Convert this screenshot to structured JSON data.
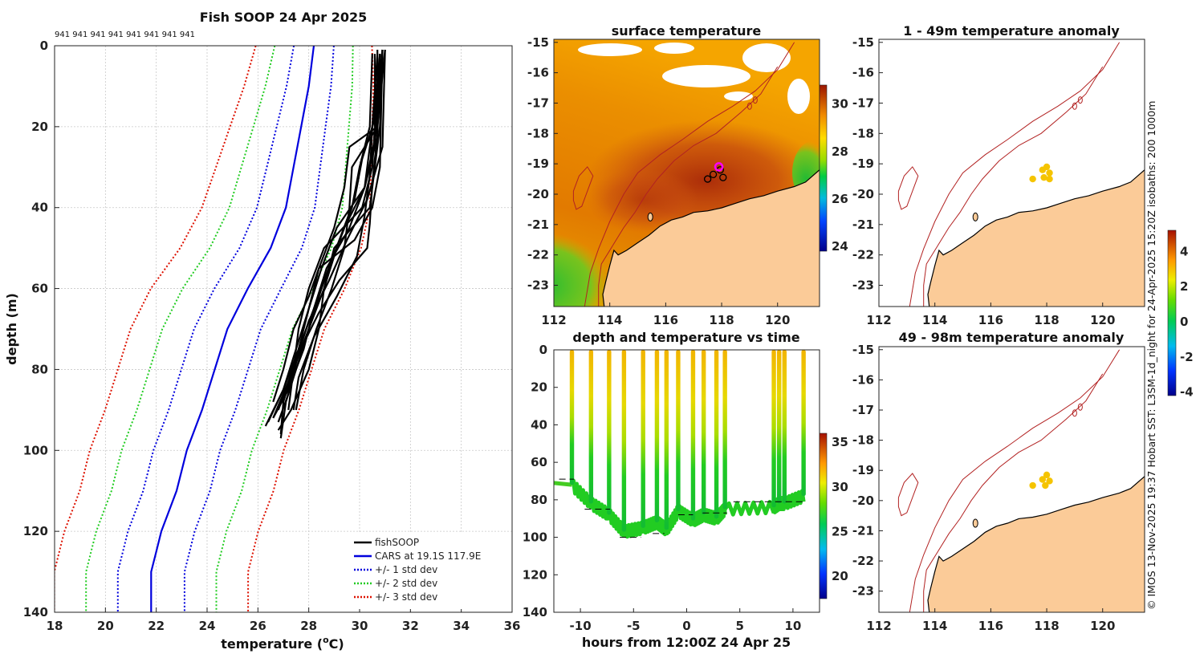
{
  "credit": "© IMOS 13-Nov-2025 19:37 Hobart SST: L3SM-1d_night for 24-Apr-2025 15:20Z isobaths: 200  1000m",
  "colors": {
    "fishsoop": "#000000",
    "cars": "#0000dd",
    "std1": "#0000dd",
    "std2": "#22cc22",
    "std3": "#dd1100",
    "land": "#fbcb98",
    "isobath": "#b22222"
  },
  "chart_data": [
    {
      "id": "profile",
      "type": "line",
      "title": "Fish SOOP 24 Apr 2025",
      "top_label": "941 941 941 941 941 941 941 941",
      "xlabel": "temperature (°C)",
      "xlabel_main": "temperature (",
      "xlabel_sup": "o",
      "xlabel_end": "C)",
      "ylabel": "depth (m)",
      "xlim": [
        18,
        36
      ],
      "ylim": [
        0,
        140
      ],
      "xticks": [
        18,
        20,
        22,
        24,
        26,
        28,
        30,
        32,
        34,
        36
      ],
      "yticks": [
        0,
        20,
        40,
        60,
        80,
        100,
        120,
        140
      ],
      "legend": [
        "fishSOOP",
        "CARS at 19.1S 117.9E",
        "+/- 1 std dev",
        "+/- 2 std dev",
        "+/- 3 std dev"
      ],
      "legend_position": "bottom-right",
      "cars": {
        "depth": [
          0,
          10,
          20,
          30,
          40,
          50,
          60,
          70,
          80,
          90,
          100,
          110,
          120,
          125,
          130,
          140
        ],
        "temp": [
          28.2,
          28.0,
          27.7,
          27.4,
          27.1,
          26.5,
          25.6,
          24.8,
          24.3,
          23.8,
          23.2,
          22.8,
          22.2,
          22.0,
          21.8,
          21.8
        ]
      },
      "std_offsets": [
        1.05,
        2.05,
        3.05
      ],
      "fishsoop_profiles": [
        {
          "depth": [
            1,
            20,
            30,
            40,
            50,
            60,
            70,
            80,
            90,
            95
          ],
          "temp": [
            30.9,
            30.8,
            30.6,
            30.4,
            29.0,
            28.6,
            28.4,
            28.0,
            27.3,
            26.8
          ]
        },
        {
          "depth": [
            2,
            15,
            25,
            35,
            45,
            55,
            65,
            75,
            85,
            92
          ],
          "temp": [
            30.8,
            30.6,
            30.4,
            30.2,
            29.4,
            28.8,
            28.2,
            27.8,
            27.2,
            26.6
          ]
        },
        {
          "depth": [
            1,
            20,
            25,
            35,
            45,
            55,
            65,
            75,
            85,
            93
          ],
          "temp": [
            30.7,
            30.7,
            29.6,
            29.4,
            29.0,
            28.4,
            28.0,
            27.6,
            27.0,
            26.4
          ]
        },
        {
          "depth": [
            2,
            20,
            30,
            40,
            50,
            60,
            70,
            80,
            90
          ],
          "temp": [
            30.6,
            30.6,
            30.5,
            30.1,
            28.6,
            28.0,
            27.6,
            27.4,
            27.2
          ]
        },
        {
          "depth": [
            1,
            20,
            35,
            45,
            55,
            65,
            75,
            85,
            94
          ],
          "temp": [
            30.9,
            30.7,
            30.2,
            29.1,
            28.5,
            28.0,
            27.5,
            27.0,
            26.3
          ]
        },
        {
          "depth": [
            2,
            25,
            35,
            45,
            55,
            65,
            75,
            85,
            90
          ],
          "temp": [
            30.8,
            30.6,
            30.2,
            29.6,
            28.7,
            28.2,
            27.6,
            27.1,
            26.8
          ]
        },
        {
          "depth": [
            1,
            30,
            40,
            48,
            55,
            62,
            70,
            80,
            88
          ],
          "temp": [
            30.9,
            30.8,
            30.5,
            29.8,
            28.4,
            28.0,
            27.4,
            27.0,
            26.6
          ]
        },
        {
          "depth": [
            2,
            20,
            30,
            40,
            50,
            60,
            70,
            80,
            92
          ],
          "temp": [
            30.5,
            30.4,
            30.0,
            29.7,
            29.1,
            28.6,
            28.0,
            27.4,
            26.6
          ]
        },
        {
          "depth": [
            1,
            25,
            38,
            48,
            58,
            68,
            78,
            88,
            96
          ],
          "temp": [
            31.0,
            30.9,
            30.3,
            29.5,
            28.8,
            28.0,
            27.5,
            27.0,
            26.9
          ]
        },
        {
          "depth": [
            2,
            20,
            32,
            42,
            52,
            62,
            72,
            82,
            90
          ],
          "temp": [
            30.7,
            30.5,
            30.4,
            30.2,
            29.9,
            29.1,
            28.2,
            27.6,
            27.4
          ]
        },
        {
          "depth": [
            1,
            18,
            28,
            38,
            48,
            58,
            68,
            78,
            88,
            97
          ],
          "temp": [
            30.9,
            30.6,
            30.1,
            29.8,
            29.2,
            28.6,
            28.1,
            27.6,
            27.1,
            26.9
          ]
        },
        {
          "depth": [
            2,
            22,
            34,
            44,
            50,
            58,
            66,
            76,
            86,
            93
          ],
          "temp": [
            30.8,
            30.7,
            30.5,
            30.4,
            30.3,
            29.2,
            28.4,
            27.6,
            27.2,
            26.8
          ]
        },
        {
          "depth": [
            1,
            20,
            30,
            40,
            50,
            60,
            70,
            80,
            90
          ],
          "temp": [
            31.0,
            30.7,
            29.7,
            29.6,
            29.4,
            28.9,
            28.3,
            27.8,
            27.5
          ]
        }
      ]
    },
    {
      "id": "sst",
      "type": "heatmap",
      "title": "surface temperature",
      "xlim": [
        112,
        121.5
      ],
      "ylim": [
        -23.7,
        -14.9
      ],
      "xticks": [
        112,
        114,
        116,
        118,
        120
      ],
      "yticks": [
        -15,
        -16,
        -17,
        -18,
        -19,
        -20,
        -21,
        -22,
        -23
      ],
      "colorbar": {
        "min": 23.8,
        "max": 30.8,
        "ticks": [
          24,
          26,
          28,
          30
        ]
      },
      "markers": [
        {
          "lon": 117.5,
          "lat": -19.5
        },
        {
          "lon": 117.7,
          "lat": -19.35
        },
        {
          "lon": 117.95,
          "lat": -19.2
        },
        {
          "lon": 118.05,
          "lat": -19.45
        },
        {
          "lon": 117.9,
          "lat": -19.1
        }
      ],
      "highlight": {
        "lon": 117.9,
        "lat": -19.1
      }
    },
    {
      "id": "depthtime",
      "type": "scatter",
      "title": "depth and temperature vs time",
      "xlabel": "hours from 12:00Z 24 Apr 25",
      "xlim": [
        -12.5,
        12.5
      ],
      "ylim": [
        0,
        140
      ],
      "xticks": [
        -10,
        -5,
        0,
        5,
        10
      ],
      "yticks": [
        0,
        20,
        40,
        60,
        80,
        100,
        120,
        140
      ],
      "colorbar": {
        "min": 17.5,
        "max": 36.0,
        "ticks": [
          20,
          25,
          30,
          35
        ]
      },
      "cast_times": [
        -10.8,
        -9.0,
        -7.3,
        -5.9,
        -4.1,
        -2.8,
        -1.9,
        -0.8,
        0.6,
        1.6,
        2.8,
        3.6,
        8.2,
        8.7,
        9.2,
        11.0
      ],
      "cast_max_depth": [
        72,
        82,
        88,
        97,
        95,
        92,
        96,
        86,
        91,
        88,
        90,
        85,
        84,
        82,
        82,
        78
      ],
      "bottom_segments": [
        {
          "t0": -12.0,
          "t1": -10.6,
          "d": 69
        },
        {
          "t0": -9.6,
          "t1": -7.2,
          "d": 85
        },
        {
          "t0": -6.3,
          "t1": -4.3,
          "d": 100
        },
        {
          "t0": -3.2,
          "t1": -2.1,
          "d": 98
        },
        {
          "t0": -0.8,
          "t1": 0.6,
          "d": 88
        },
        {
          "t0": 1.5,
          "t1": 3.8,
          "d": 87
        },
        {
          "t0": 4.4,
          "t1": 11.2,
          "d": 81
        }
      ]
    },
    {
      "id": "anom1",
      "type": "scatter",
      "title": "1 - 49m temperature anomaly",
      "xlim": [
        112,
        121.5
      ],
      "ylim": [
        -23.7,
        -14.9
      ],
      "xticks": [
        112,
        114,
        116,
        118,
        120
      ],
      "yticks": [
        -15,
        -16,
        -17,
        -18,
        -19,
        -20,
        -21,
        -22,
        -23
      ],
      "points": [
        {
          "lon": 117.5,
          "lat": -19.5
        },
        {
          "lon": 117.85,
          "lat": -19.2
        },
        {
          "lon": 118.0,
          "lat": -19.1
        },
        {
          "lon": 118.1,
          "lat": -19.3
        },
        {
          "lon": 117.9,
          "lat": -19.45
        },
        {
          "lon": 118.1,
          "lat": -19.5
        }
      ]
    },
    {
      "id": "anom2",
      "type": "scatter",
      "title": "49 - 98m temperature anomaly",
      "xlim": [
        112,
        121.5
      ],
      "ylim": [
        -23.7,
        -14.9
      ],
      "xticks": [
        112,
        114,
        116,
        118,
        120
      ],
      "yticks": [
        -15,
        -16,
        -17,
        -18,
        -19,
        -20,
        -21,
        -22,
        -23
      ],
      "points": [
        {
          "lon": 117.5,
          "lat": -19.5
        },
        {
          "lon": 117.85,
          "lat": -19.3
        },
        {
          "lon": 118.0,
          "lat": -19.15
        },
        {
          "lon": 118.1,
          "lat": -19.35
        },
        {
          "lon": 117.95,
          "lat": -19.5
        }
      ],
      "colorbar": {
        "min": -4.2,
        "max": 5.2,
        "ticks": [
          -4,
          -2,
          0,
          2,
          4
        ]
      }
    }
  ],
  "coast": [
    [
      121.5,
      -19.2
    ],
    [
      121.0,
      -19.6
    ],
    [
      120.6,
      -19.75
    ],
    [
      120.0,
      -19.9
    ],
    [
      119.5,
      -20.05
    ],
    [
      119.0,
      -20.15
    ],
    [
      118.5,
      -20.3
    ],
    [
      118.0,
      -20.45
    ],
    [
      117.5,
      -20.55
    ],
    [
      117.0,
      -20.6
    ],
    [
      116.6,
      -20.75
    ],
    [
      116.2,
      -20.85
    ],
    [
      115.8,
      -21.05
    ],
    [
      115.4,
      -21.35
    ],
    [
      115.0,
      -21.6
    ],
    [
      114.6,
      -21.85
    ],
    [
      114.3,
      -22.0
    ],
    [
      114.15,
      -21.85
    ],
    [
      114.0,
      -22.35
    ],
    [
      113.85,
      -22.9
    ],
    [
      113.75,
      -23.3
    ],
    [
      113.8,
      -23.7
    ]
  ],
  "isobath200": [
    [
      120.0,
      -15.8
    ],
    [
      119.4,
      -16.7
    ],
    [
      118.7,
      -17.3
    ],
    [
      117.8,
      -18.0
    ],
    [
      117.0,
      -18.4
    ],
    [
      116.3,
      -18.9
    ],
    [
      115.7,
      -19.5
    ],
    [
      115.3,
      -20.0
    ],
    [
      114.9,
      -20.6
    ],
    [
      114.5,
      -21.1
    ],
    [
      114.1,
      -21.7
    ],
    [
      113.7,
      -22.3
    ],
    [
      113.6,
      -23.0
    ],
    [
      113.6,
      -23.7
    ]
  ],
  "isobath1000": [
    [
      120.6,
      -15.0
    ],
    [
      120.0,
      -15.9
    ],
    [
      119.2,
      -16.6
    ],
    [
      118.4,
      -17.1
    ],
    [
      117.5,
      -17.6
    ],
    [
      116.6,
      -18.2
    ],
    [
      115.8,
      -18.7
    ],
    [
      115.0,
      -19.3
    ],
    [
      114.5,
      -20.0
    ],
    [
      114.0,
      -20.9
    ],
    [
      113.6,
      -21.8
    ],
    [
      113.3,
      -22.6
    ],
    [
      113.1,
      -23.7
    ]
  ],
  "rowley": [
    [
      112.7,
      -19.9
    ],
    [
      112.9,
      -19.4
    ],
    [
      113.2,
      -19.1
    ],
    [
      113.4,
      -19.4
    ],
    [
      113.2,
      -19.9
    ],
    [
      113.0,
      -20.4
    ],
    [
      112.8,
      -20.5
    ],
    [
      112.7,
      -20.2
    ]
  ]
}
